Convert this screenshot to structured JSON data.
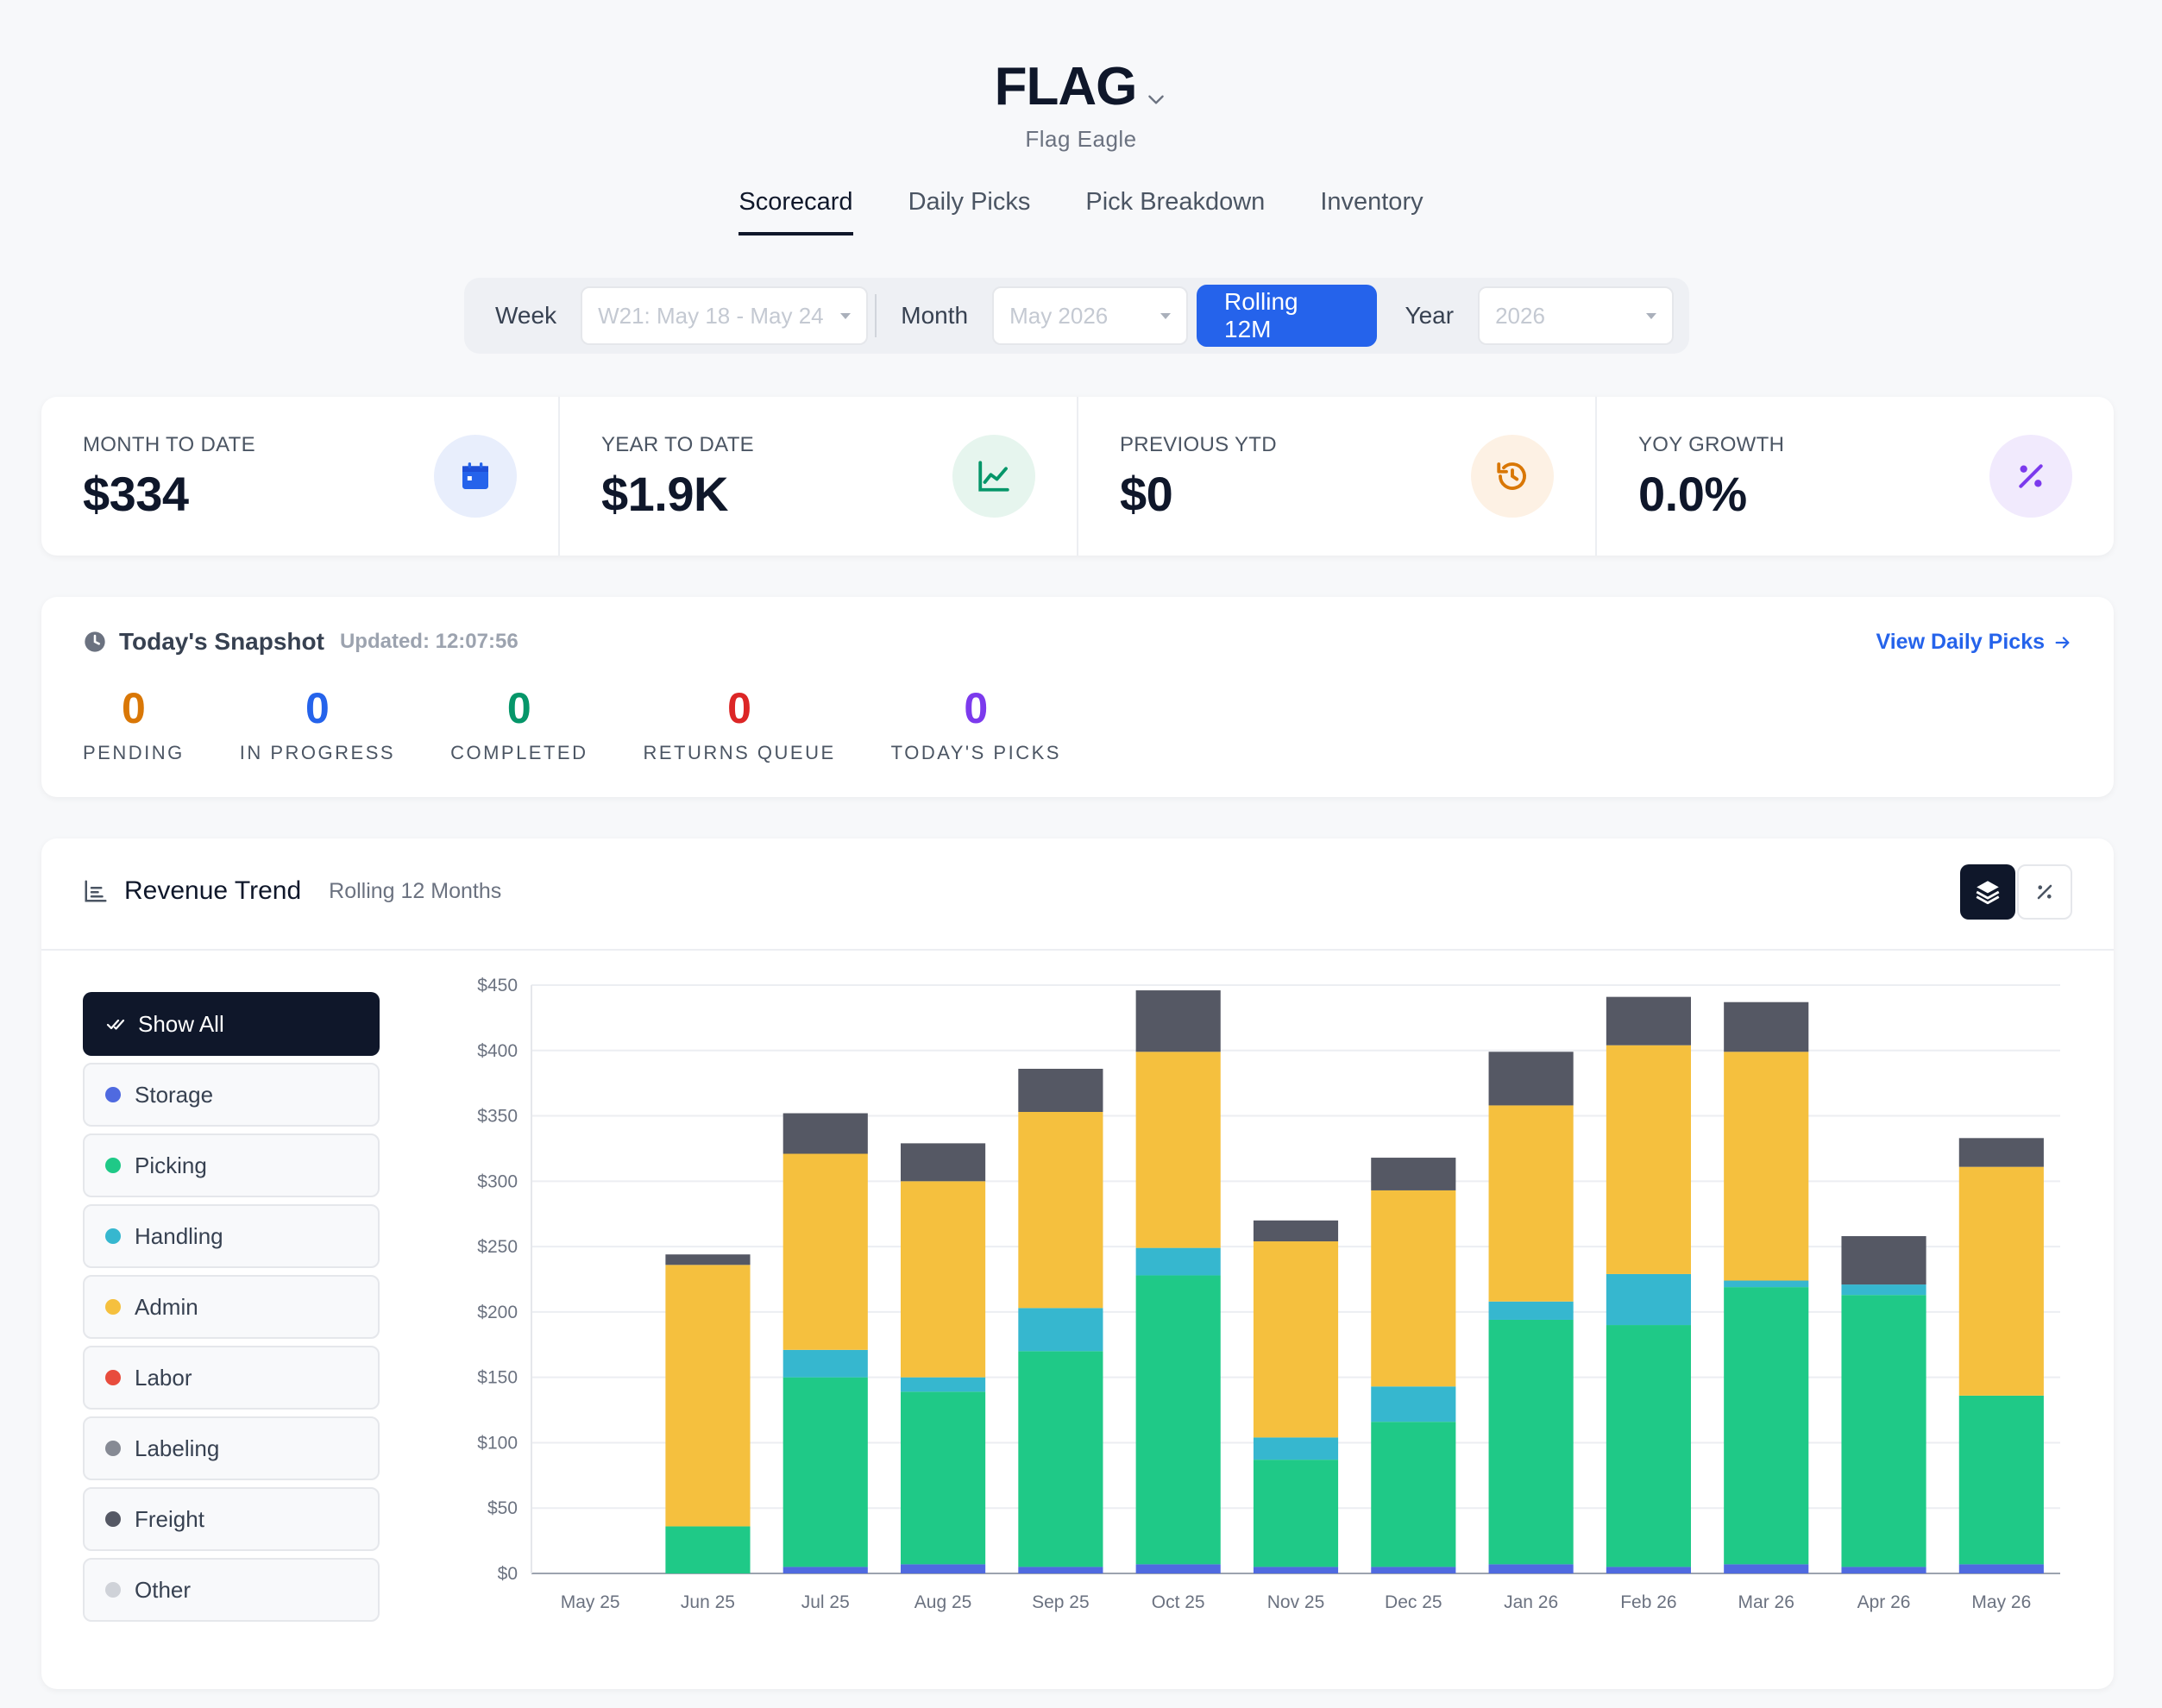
{
  "header": {
    "title": "FLAG",
    "subtitle": "Flag Eagle"
  },
  "tabs": [
    {
      "label": "Scorecard",
      "active": true
    },
    {
      "label": "Daily Picks",
      "active": false
    },
    {
      "label": "Pick Breakdown",
      "active": false
    },
    {
      "label": "Inventory",
      "active": false
    }
  ],
  "filter": {
    "week_label": "Week",
    "week_value": "W21: May 18 - May 24",
    "month_label": "Month",
    "month_value": "May 2026",
    "rolling_label": "Rolling 12M",
    "year_label": "Year",
    "year_value": "2026"
  },
  "kpis": [
    {
      "label": "MONTH TO DATE",
      "value": "$334",
      "icon": "calendar-icon",
      "color": "#2563eb",
      "bg": "#e8eefc"
    },
    {
      "label": "YEAR TO DATE",
      "value": "$1.9K",
      "icon": "line-chart-icon",
      "color": "#059669",
      "bg": "#e6f5ee"
    },
    {
      "label": "PREVIOUS YTD",
      "value": "$0",
      "icon": "history-icon",
      "color": "#d97706",
      "bg": "#fdf1e4"
    },
    {
      "label": "YOY GROWTH",
      "value": "0.0%",
      "icon": "percent-icon",
      "color": "#7c3aed",
      "bg": "#f1eafd"
    }
  ],
  "snapshot": {
    "title": "Today's Snapshot",
    "updated": "Updated: 12:07:56",
    "link": "View Daily Picks",
    "metrics": [
      {
        "value": "0",
        "label": "PENDING",
        "color": "#d97706"
      },
      {
        "value": "0",
        "label": "IN PROGRESS",
        "color": "#2563eb"
      },
      {
        "value": "0",
        "label": "COMPLETED",
        "color": "#059669"
      },
      {
        "value": "0",
        "label": "RETURNS QUEUE",
        "color": "#dc2626"
      },
      {
        "value": "0",
        "label": "TODAY'S PICKS",
        "color": "#7c3aed"
      }
    ]
  },
  "revenue": {
    "title": "Revenue Trend",
    "subtitle": "Rolling 12 Months",
    "show_all_label": "Show All",
    "legend": [
      {
        "label": "Storage",
        "color": "#4f6ae0"
      },
      {
        "label": "Picking",
        "color": "#1fc987"
      },
      {
        "label": "Handling",
        "color": "#36b7cf"
      },
      {
        "label": "Admin",
        "color": "#f5c03e"
      },
      {
        "label": "Labor",
        "color": "#e84c3d"
      },
      {
        "label": "Labeling",
        "color": "#868a94"
      },
      {
        "label": "Freight",
        "color": "#555864"
      },
      {
        "label": "Other",
        "color": "#cfd2d8"
      }
    ]
  },
  "chart_data": {
    "type": "bar",
    "stacked": true,
    "categories": [
      "May 25",
      "Jun 25",
      "Jul 25",
      "Aug 25",
      "Sep 25",
      "Oct 25",
      "Nov 25",
      "Dec 25",
      "Jan 26",
      "Feb 26",
      "Mar 26",
      "Apr 26",
      "May 26"
    ],
    "series": [
      {
        "name": "Storage",
        "color": "#4f6ae0",
        "values": [
          0,
          0,
          5,
          7,
          5,
          7,
          5,
          5,
          7,
          5,
          7,
          5,
          7
        ]
      },
      {
        "name": "Picking",
        "color": "#1fc987",
        "values": [
          0,
          36,
          145,
          132,
          165,
          221,
          82,
          111,
          187,
          185,
          212,
          208,
          129
        ]
      },
      {
        "name": "Handling",
        "color": "#36b7cf",
        "values": [
          0,
          0,
          21,
          11,
          33,
          21,
          17,
          27,
          14,
          39,
          5,
          8,
          0
        ]
      },
      {
        "name": "Admin",
        "color": "#f5c03e",
        "values": [
          0,
          200,
          150,
          150,
          150,
          150,
          150,
          150,
          150,
          175,
          175,
          0,
          175
        ]
      },
      {
        "name": "Labor",
        "color": "#e84c3d",
        "values": [
          0,
          0,
          0,
          0,
          0,
          0,
          0,
          0,
          0,
          0,
          0,
          0,
          0
        ]
      },
      {
        "name": "Labeling",
        "color": "#868a94",
        "values": [
          0,
          0,
          0,
          0,
          0,
          0,
          0,
          0,
          0,
          0,
          0,
          0,
          0
        ]
      },
      {
        "name": "Freight",
        "color": "#555864",
        "values": [
          0,
          8,
          31,
          29,
          33,
          47,
          16,
          25,
          41,
          37,
          38,
          37,
          22
        ]
      },
      {
        "name": "Other",
        "color": "#cfd2d8",
        "values": [
          0,
          0,
          0,
          0,
          0,
          0,
          0,
          0,
          0,
          0,
          0,
          0,
          0
        ]
      }
    ],
    "yticks": [
      "$0",
      "$50",
      "$100",
      "$150",
      "$200",
      "$250",
      "$300",
      "$350",
      "$400",
      "$450"
    ],
    "ylim": [
      0,
      450
    ],
    "grid": true
  }
}
